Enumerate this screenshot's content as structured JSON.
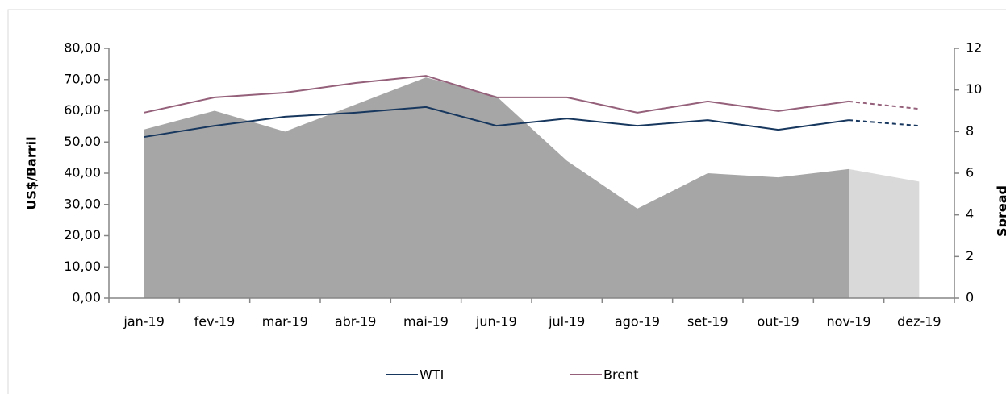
{
  "chart_data": {
    "type": "combo",
    "y_label": "US$/Barril",
    "y2_label": "Spread",
    "categories": [
      "jan-19",
      "fev-19",
      "mar-19",
      "abr-19",
      "mai-19",
      "jun-19",
      "jul-19",
      "ago-19",
      "set-19",
      "out-19",
      "nov-19",
      "dez-19"
    ],
    "projection_start": "nov-19",
    "series": [
      {
        "name": "Spread",
        "type": "area",
        "axis": "y2",
        "color": "#a6a6a6",
        "projection_color": "#d9d9d9",
        "values": [
          8.1,
          9.0,
          8.0,
          9.3,
          10.6,
          9.7,
          6.6,
          4.3,
          6.0,
          5.8,
          6.2,
          5.6
        ]
      },
      {
        "name": "WTI",
        "type": "line",
        "color": "#17375e",
        "values": [
          51.6,
          55.2,
          58.1,
          59.4,
          61.2,
          55.2,
          57.5,
          55.2,
          57.0,
          53.9,
          57.0,
          55.2
        ]
      },
      {
        "name": "Brent",
        "type": "line",
        "color": "#94607a",
        "values": [
          59.4,
          64.3,
          65.8,
          68.9,
          71.2,
          64.3,
          64.3,
          59.4,
          63.0,
          59.9,
          63.0,
          60.6
        ]
      }
    ],
    "ylim": [
      0,
      80
    ],
    "yticks": [
      {
        "value": 0,
        "label": "0,00"
      },
      {
        "value": 10,
        "label": "10,00"
      },
      {
        "value": 20,
        "label": "20,00"
      },
      {
        "value": 30,
        "label": "30,00"
      },
      {
        "value": 40,
        "label": "40,00"
      },
      {
        "value": 50,
        "label": "50,00"
      },
      {
        "value": 60,
        "label": "60,00"
      },
      {
        "value": 70,
        "label": "70,00"
      },
      {
        "value": 80,
        "label": "80,00"
      }
    ],
    "y2lim": [
      0,
      12
    ],
    "y2ticks": [
      0,
      2,
      4,
      6,
      8,
      10,
      12
    ],
    "legend": "bottom"
  }
}
